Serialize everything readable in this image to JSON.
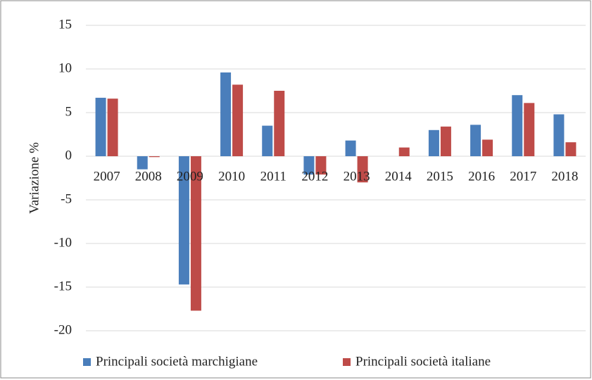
{
  "chart_data": {
    "type": "bar",
    "y_label": "Variazione %",
    "categories": [
      "2007",
      "2008",
      "2009",
      "2010",
      "2011",
      "2012",
      "2013",
      "2014",
      "2015",
      "2016",
      "2017",
      "2018"
    ],
    "series": [
      {
        "name": "Principali società marchigiane",
        "color": "#4a7ebb",
        "values": [
          6.7,
          -1.5,
          -14.7,
          9.6,
          3.5,
          -2.1,
          1.8,
          0,
          3.0,
          3.6,
          7.0,
          4.8
        ]
      },
      {
        "name": "Principali società italiane",
        "color": "#be4b48",
        "values": [
          6.6,
          -0.1,
          -17.7,
          8.2,
          7.5,
          -2.1,
          -3.0,
          1.0,
          3.4,
          1.9,
          6.1,
          1.6
        ]
      }
    ],
    "ylim": [
      -20,
      15
    ],
    "yticks": [
      -20,
      -15,
      -10,
      -5,
      0,
      5,
      10,
      15
    ],
    "grid": true,
    "legend": "bottom"
  }
}
